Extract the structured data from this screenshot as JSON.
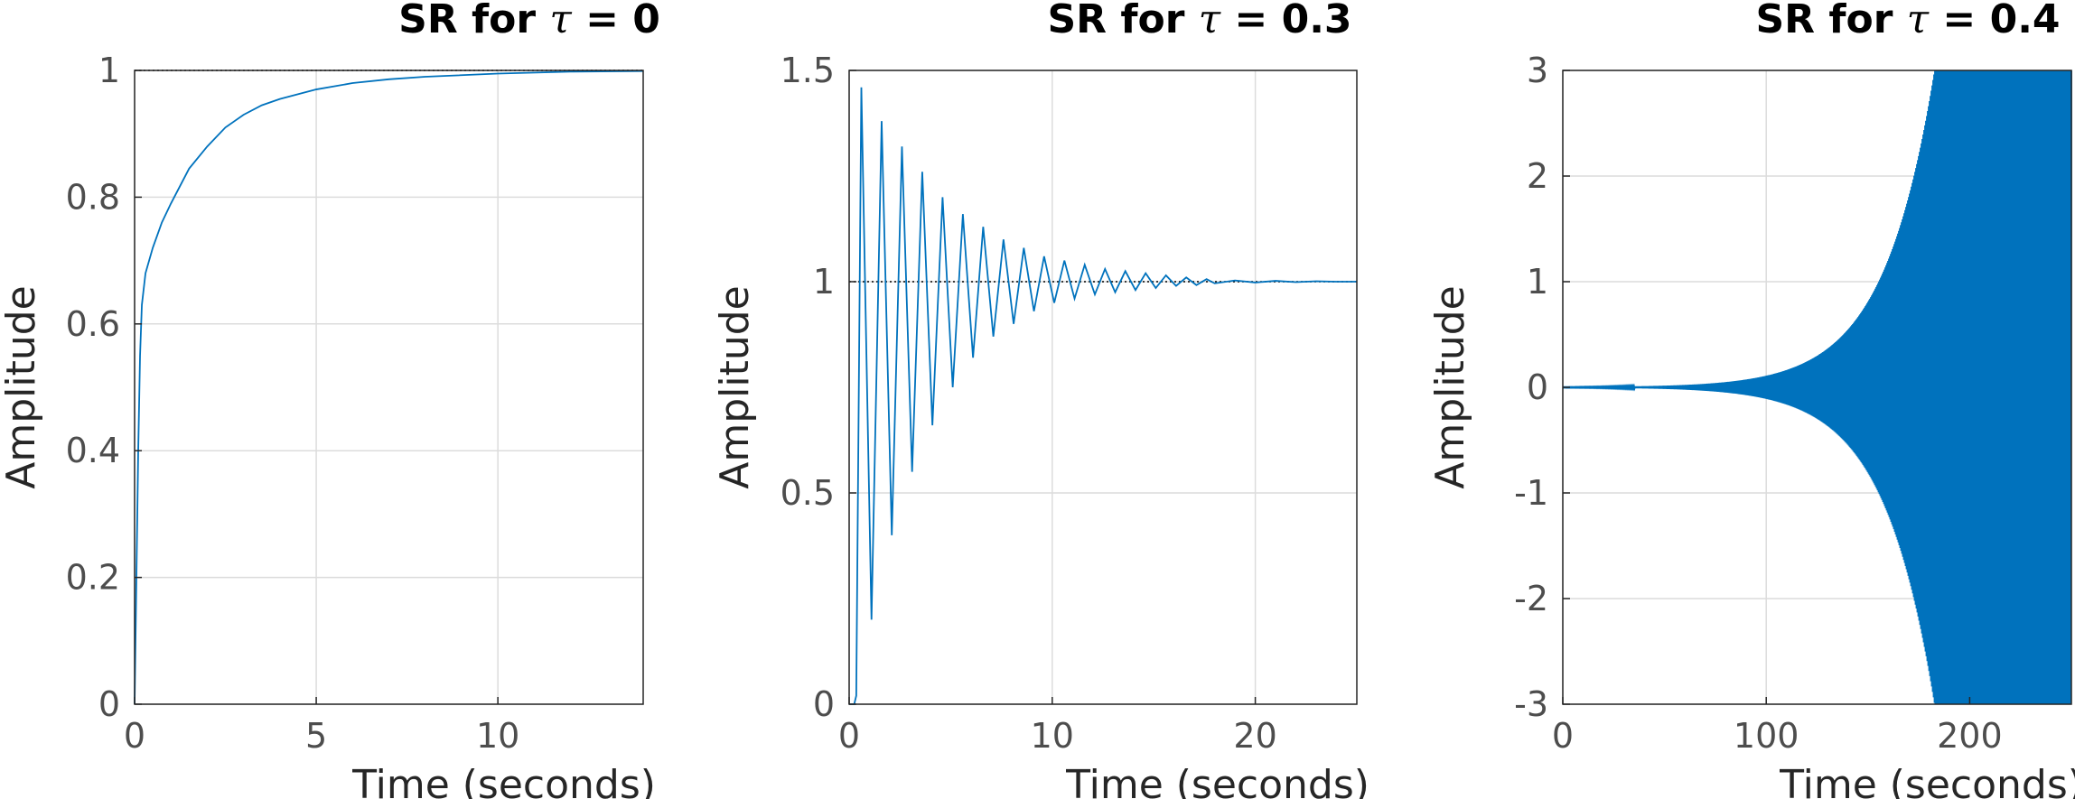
{
  "colors": {
    "series": "#0072bd",
    "grid": "#dcdcdc",
    "axes": "#262626",
    "ticks": "#4d4d4d"
  },
  "chart_data": [
    {
      "type": "line",
      "title_prefix": "SR for ",
      "title_symbol": "τ",
      "title_suffix": " = 0",
      "xlabel": "Time (seconds)",
      "ylabel": "Amplitude",
      "xlim": [
        0,
        14
      ],
      "ylim": [
        0,
        1
      ],
      "xticks": [
        0,
        5,
        10
      ],
      "yticks": [
        0,
        0.2,
        0.4,
        0.6,
        0.8,
        1
      ],
      "ytick_labels": [
        "0",
        "0.2",
        "0.4",
        "0.6",
        "0.8",
        "1"
      ],
      "grid": true,
      "reference_line_y": 1,
      "series": [
        {
          "x": [
            0,
            0.05,
            0.1,
            0.15,
            0.2,
            0.3,
            0.5,
            0.75,
            1,
            1.5,
            2,
            2.5,
            3,
            3.5,
            4,
            5,
            6,
            7,
            8,
            10,
            12,
            14
          ],
          "y": [
            0,
            0.2,
            0.4,
            0.55,
            0.63,
            0.68,
            0.72,
            0.76,
            0.79,
            0.845,
            0.88,
            0.91,
            0.93,
            0.945,
            0.955,
            0.97,
            0.98,
            0.986,
            0.99,
            0.995,
            0.998,
            0.999
          ]
        }
      ]
    },
    {
      "type": "line",
      "title_prefix": "SR for ",
      "title_symbol": "τ",
      "title_suffix": " = 0.3",
      "xlabel": "Time (seconds)",
      "ylabel": "Amplitude",
      "xlim": [
        0,
        25
      ],
      "ylim": [
        0,
        1.5
      ],
      "xticks": [
        0,
        10,
        20
      ],
      "yticks": [
        0,
        0.5,
        1,
        1.5
      ],
      "ytick_labels": [
        "0",
        "0.5",
        "1",
        "1.5"
      ],
      "grid": true,
      "reference_line_y": 1,
      "series": [
        {
          "x": [
            0,
            0.25,
            0.35,
            0.6,
            1.1,
            1.6,
            2.1,
            2.6,
            3.1,
            3.6,
            4.1,
            4.6,
            5.1,
            5.6,
            6.1,
            6.6,
            7.1,
            7.6,
            8.1,
            8.6,
            9.1,
            9.6,
            10.1,
            10.6,
            11.1,
            11.6,
            12.1,
            12.6,
            13.1,
            13.6,
            14.1,
            14.6,
            15.1,
            15.6,
            16.1,
            16.6,
            17.1,
            17.6,
            18,
            19,
            20,
            21,
            22,
            23,
            24,
            25
          ],
          "y": [
            0,
            0,
            0.02,
            1.46,
            0.2,
            1.38,
            0.4,
            1.32,
            0.55,
            1.26,
            0.66,
            1.2,
            0.75,
            1.16,
            0.82,
            1.13,
            0.87,
            1.1,
            0.9,
            1.08,
            0.93,
            1.06,
            0.95,
            1.05,
            0.96,
            1.04,
            0.97,
            1.03,
            0.975,
            1.025,
            0.98,
            1.02,
            0.985,
            1.015,
            0.99,
            1.01,
            0.992,
            1.006,
            0.996,
            1.003,
            0.998,
            1.002,
            0.999,
            1.001,
            1,
            1
          ]
        }
      ]
    },
    {
      "type": "line",
      "title_prefix": "SR for ",
      "title_symbol": "τ",
      "title_suffix": " = 0.4",
      "xlabel": "Time (seconds)",
      "ylabel": "Amplitude",
      "xlim": [
        0,
        250
      ],
      "ylim": [
        -3,
        3
      ],
      "xticks": [
        0,
        100,
        200
      ],
      "yticks": [
        -3,
        -2,
        -1,
        0,
        1,
        2,
        3
      ],
      "ytick_labels": [
        "-3",
        "-2",
        "-1",
        "0",
        "1",
        "2",
        "3"
      ],
      "grid": true,
      "growing_oscillation": {
        "start": 0,
        "end": 250,
        "amplitude_start": 0.002,
        "amplitude_end": 3,
        "growth_rate": 0.04,
        "period": 0.55
      }
    }
  ]
}
